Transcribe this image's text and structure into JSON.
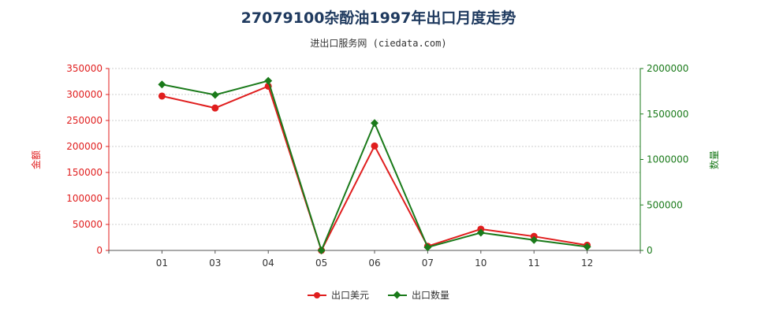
{
  "header": {
    "title": "27079100杂酚油1997年出口月度走势",
    "subtitle": "进出口服务网 (ciedata.com)"
  },
  "colors": {
    "usd": "#e01e1e",
    "qty": "#1a7a1a",
    "axis": "#555555",
    "grid": "#cccccc"
  },
  "chart_data": {
    "type": "line",
    "title": "27079100杂酚油1997年出口月度走势",
    "subtitle": "进出口服务网 (ciedata.com)",
    "categories": [
      "01",
      "03",
      "04",
      "05",
      "06",
      "07",
      "10",
      "11",
      "12"
    ],
    "y_left": {
      "label": "金额",
      "ylim": [
        0,
        350000
      ],
      "ticks": [
        "0",
        "50000",
        "100000",
        "150000",
        "200000",
        "250000",
        "300000",
        "350000"
      ]
    },
    "y_right": {
      "label": "数量",
      "ylim": [
        0,
        2000000
      ],
      "ticks": [
        "0",
        "500000",
        "1000000",
        "1500000",
        "2000000"
      ]
    },
    "series": [
      {
        "name": "出口美元",
        "axis": "left",
        "values": [
          297000,
          274000,
          316000,
          0,
          201000,
          8000,
          41000,
          27000,
          10000
        ]
      },
      {
        "name": "出口数量",
        "axis": "right",
        "values": [
          1825000,
          1710000,
          1865000,
          0,
          1400000,
          35000,
          195000,
          115000,
          40000
        ]
      }
    ],
    "legend_position": "bottom"
  }
}
